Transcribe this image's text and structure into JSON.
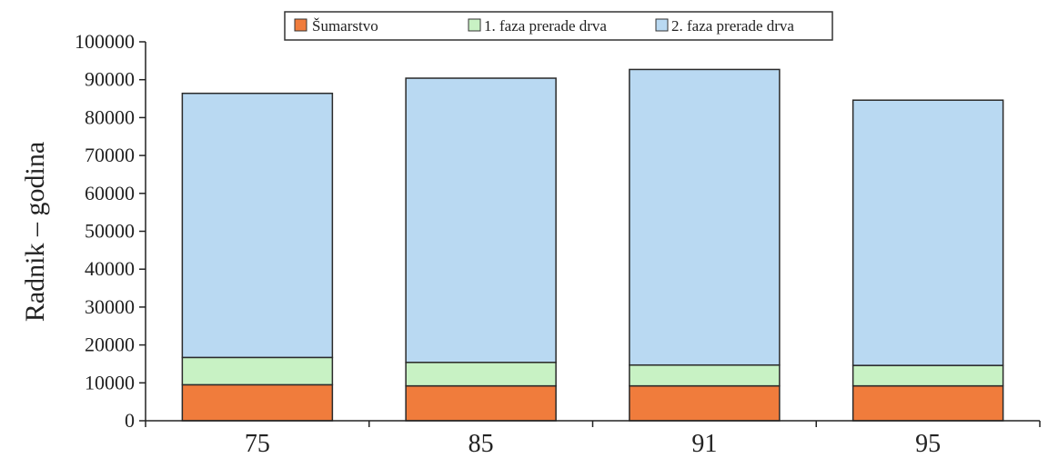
{
  "chart_data": {
    "type": "bar",
    "stacked": true,
    "categories": [
      "75",
      "85",
      "91",
      "95"
    ],
    "series": [
      {
        "name": "Šumarstvo",
        "color": "#f07c3c",
        "values": [
          9500,
          9200,
          9200,
          9200
        ]
      },
      {
        "name": "1. faza prerade drva",
        "color": "#c8f2c4",
        "values": [
          7200,
          6200,
          5500,
          5400
        ]
      },
      {
        "name": "2. faza prerade drva",
        "color": "#b9d9f2",
        "values": [
          69700,
          75000,
          78000,
          70000
        ]
      }
    ],
    "ylabel": "Radnik – godina",
    "xlabel": "",
    "ylim": [
      0,
      100000
    ],
    "yticks": [
      "0",
      "10000",
      "20000",
      "30000",
      "40000",
      "50000",
      "60000",
      "70000",
      "80000",
      "90000",
      "100000"
    ],
    "legend_position": "top-center",
    "grid": false
  }
}
